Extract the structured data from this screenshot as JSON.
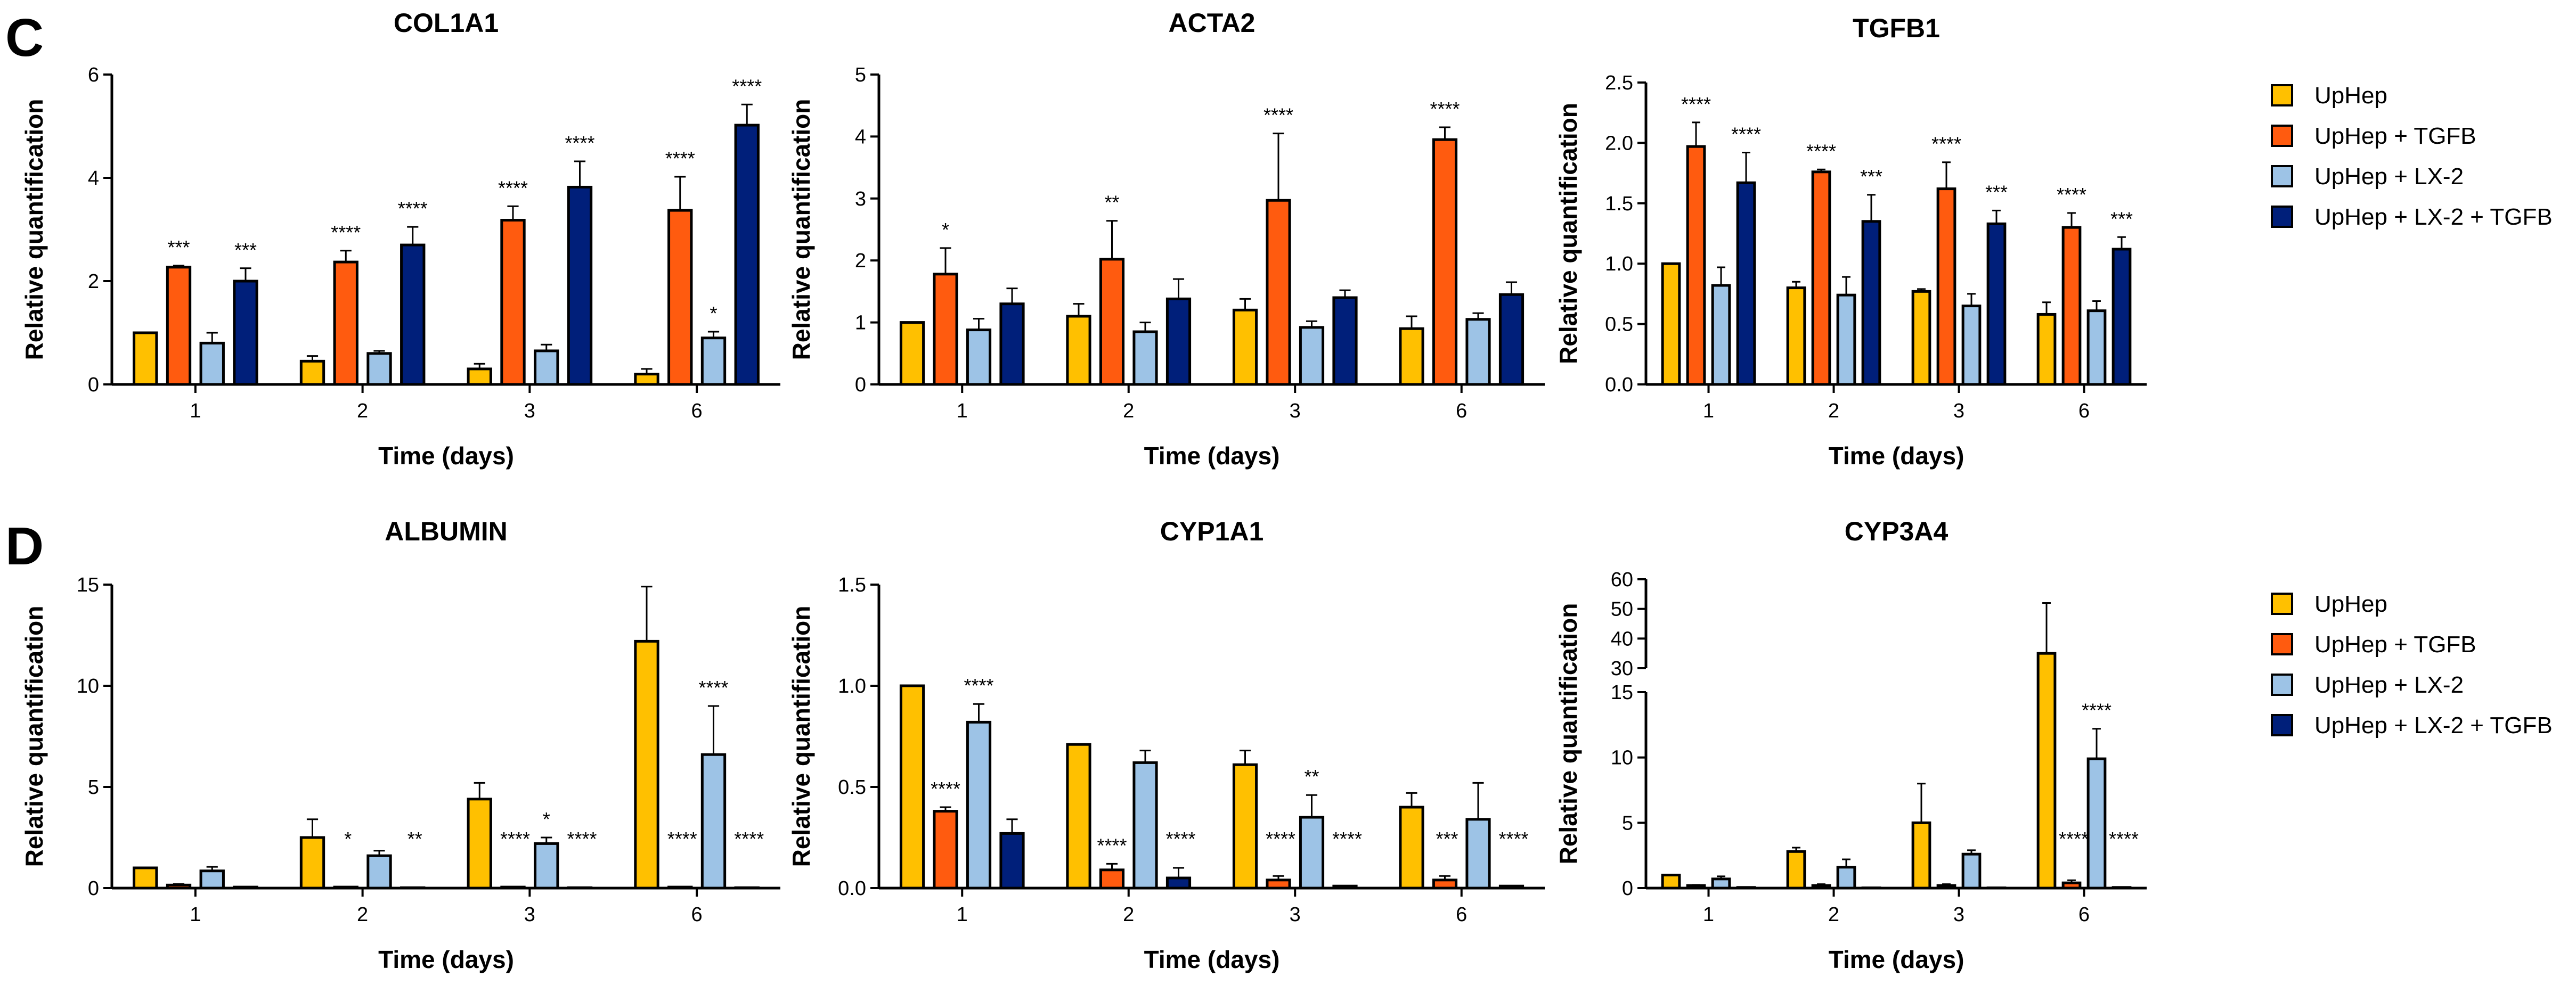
{
  "panels": [
    {
      "letter": "C"
    },
    {
      "letter": "D"
    }
  ],
  "legend": {
    "entries": [
      "UpHep",
      "UpHep + TGFB",
      "UpHep + LX-2",
      "UpHep + LX-2 + TGFB"
    ]
  },
  "colors": {
    "series": [
      "#FFC000",
      "#FF5B0F",
      "#9DC3E6",
      "#001F7A"
    ],
    "axis": "#000000",
    "background": "#FFFFFF"
  },
  "chart_data": [
    {
      "type": "bar",
      "title": "COL1A1",
      "xlabel": "Time (days)",
      "ylabel": "Relative quantification",
      "categories": [
        "1",
        "2",
        "3",
        "6"
      ],
      "ylim": [
        0,
        6
      ],
      "yticks": [
        0,
        2,
        4,
        6
      ],
      "series": [
        {
          "name": "UpHep",
          "values": [
            1.0,
            0.45,
            0.3,
            0.2
          ],
          "errors": [
            0.0,
            0.1,
            0.1,
            0.1
          ],
          "sig": [
            "",
            "",
            "",
            ""
          ]
        },
        {
          "name": "UpHep + TGFB",
          "values": [
            2.27,
            2.37,
            3.18,
            3.37
          ],
          "errors": [
            0.03,
            0.22,
            0.27,
            0.65
          ],
          "sig": [
            "***",
            "****",
            "****",
            "****"
          ]
        },
        {
          "name": "UpHep + LX-2",
          "values": [
            0.8,
            0.6,
            0.65,
            0.9
          ],
          "errors": [
            0.2,
            0.05,
            0.12,
            0.12
          ],
          "sig": [
            "",
            "",
            "",
            "*"
          ]
        },
        {
          "name": "UpHep + LX-2 + TGFB",
          "values": [
            2.0,
            2.7,
            3.82,
            5.02
          ],
          "errors": [
            0.25,
            0.35,
            0.5,
            0.4
          ],
          "sig": [
            "***",
            "****",
            "****",
            "****"
          ]
        }
      ]
    },
    {
      "type": "bar",
      "title": "ACTA2",
      "xlabel": "Time (days)",
      "ylabel": "Relative quantification",
      "categories": [
        "1",
        "2",
        "3",
        "6"
      ],
      "ylim": [
        0,
        5
      ],
      "yticks": [
        0,
        1,
        2,
        3,
        4,
        5
      ],
      "series": [
        {
          "name": "UpHep",
          "values": [
            1.0,
            1.1,
            1.2,
            0.9
          ],
          "errors": [
            0.0,
            0.2,
            0.18,
            0.2
          ],
          "sig": [
            "",
            "",
            "",
            ""
          ]
        },
        {
          "name": "UpHep + TGFB",
          "values": [
            1.78,
            2.02,
            2.97,
            3.95
          ],
          "errors": [
            0.42,
            0.62,
            1.08,
            0.2
          ],
          "sig": [
            "*",
            "**",
            "****",
            "****"
          ]
        },
        {
          "name": "UpHep + LX-2",
          "values": [
            0.88,
            0.85,
            0.92,
            1.05
          ],
          "errors": [
            0.18,
            0.15,
            0.1,
            0.1
          ],
          "sig": [
            "",
            "",
            "",
            ""
          ]
        },
        {
          "name": "UpHep + LX-2 + TGFB",
          "values": [
            1.3,
            1.38,
            1.4,
            1.45
          ],
          "errors": [
            0.25,
            0.32,
            0.12,
            0.2
          ],
          "sig": [
            "",
            "",
            "",
            ""
          ]
        }
      ]
    },
    {
      "type": "bar",
      "title": "TGFB1",
      "xlabel": "Time (days)",
      "ylabel": "Relative quantification",
      "categories": [
        "1",
        "2",
        "3",
        "6"
      ],
      "ylim": [
        0,
        2.5
      ],
      "yticks": [
        0.0,
        0.5,
        1.0,
        1.5,
        2.0,
        2.5
      ],
      "series": [
        {
          "name": "UpHep",
          "values": [
            1.0,
            0.8,
            0.77,
            0.58
          ],
          "errors": [
            0.0,
            0.05,
            0.02,
            0.1
          ],
          "sig": [
            "",
            "",
            "",
            ""
          ]
        },
        {
          "name": "UpHep + TGFB",
          "values": [
            1.97,
            1.76,
            1.62,
            1.3
          ],
          "errors": [
            0.2,
            0.02,
            0.22,
            0.12
          ],
          "sig": [
            "****",
            "****",
            "****",
            "****"
          ]
        },
        {
          "name": "UpHep + LX-2",
          "values": [
            0.82,
            0.74,
            0.65,
            0.61
          ],
          "errors": [
            0.15,
            0.15,
            0.1,
            0.08
          ],
          "sig": [
            "",
            "",
            "",
            ""
          ]
        },
        {
          "name": "UpHep + LX-2 + TGFB",
          "values": [
            1.67,
            1.35,
            1.33,
            1.12
          ],
          "errors": [
            0.25,
            0.22,
            0.11,
            0.1
          ],
          "sig": [
            "****",
            "***",
            "***",
            "***"
          ]
        }
      ]
    },
    {
      "type": "bar",
      "title": "ALBUMIN",
      "xlabel": "Time (days)",
      "ylabel": "Relative quantification",
      "categories": [
        "1",
        "2",
        "3",
        "6"
      ],
      "ylim": [
        0,
        15
      ],
      "yticks": [
        0,
        5,
        10,
        15
      ],
      "series": [
        {
          "name": "UpHep",
          "values": [
            1.0,
            2.5,
            4.4,
            12.2
          ],
          "errors": [
            0.0,
            0.9,
            0.8,
            2.7
          ],
          "sig": [
            "",
            "",
            "",
            ""
          ]
        },
        {
          "name": "UpHep + TGFB",
          "values": [
            0.15,
            0.05,
            0.05,
            0.05
          ],
          "errors": [
            0.05,
            0.0,
            0.0,
            0.0
          ],
          "sig": [
            "",
            "*",
            "****",
            "****"
          ]
        },
        {
          "name": "UpHep + LX-2",
          "values": [
            0.85,
            1.6,
            2.2,
            6.6
          ],
          "errors": [
            0.2,
            0.25,
            0.3,
            2.4
          ],
          "sig": [
            "",
            "",
            "*",
            "****"
          ]
        },
        {
          "name": "UpHep + LX-2 + TGFB",
          "values": [
            0.05,
            0.02,
            0.02,
            0.02
          ],
          "errors": [
            0.0,
            0.0,
            0.0,
            0.0
          ],
          "sig": [
            "",
            "**",
            "****",
            "****"
          ]
        }
      ]
    },
    {
      "type": "bar",
      "title": "CYP1A1",
      "xlabel": "Time (days)",
      "ylabel": "Relative quantification",
      "categories": [
        "1",
        "2",
        "3",
        "6"
      ],
      "ylim": [
        0,
        1.5
      ],
      "yticks": [
        0.0,
        0.5,
        1.0,
        1.5
      ],
      "series": [
        {
          "name": "UpHep",
          "values": [
            1.0,
            0.71,
            0.61,
            0.4
          ],
          "errors": [
            0.0,
            0.0,
            0.07,
            0.07
          ],
          "sig": [
            "",
            "",
            "",
            ""
          ]
        },
        {
          "name": "UpHep + TGFB",
          "values": [
            0.38,
            0.09,
            0.04,
            0.04
          ],
          "errors": [
            0.02,
            0.03,
            0.02,
            0.02
          ],
          "sig": [
            "****",
            "****",
            "****",
            "***"
          ]
        },
        {
          "name": "UpHep + LX-2",
          "values": [
            0.82,
            0.62,
            0.35,
            0.34
          ],
          "errors": [
            0.09,
            0.06,
            0.11,
            0.18
          ],
          "sig": [
            "****",
            "",
            "**",
            ""
          ]
        },
        {
          "name": "UpHep + LX-2 + TGFB",
          "values": [
            0.27,
            0.05,
            0.01,
            0.01
          ],
          "errors": [
            0.07,
            0.05,
            0.0,
            0.0
          ],
          "sig": [
            "",
            "****",
            "****",
            "****"
          ]
        }
      ]
    },
    {
      "type": "bar",
      "title": "CYP3A4",
      "xlabel": "Time (days)",
      "ylabel": "Relative quantification",
      "categories": [
        "1",
        "2",
        "3",
        "6"
      ],
      "ylim": [
        0,
        60
      ],
      "broken_axis": [
        15,
        30
      ],
      "yticks": [
        0,
        5,
        10,
        15,
        30,
        40,
        50,
        60
      ],
      "series": [
        {
          "name": "UpHep",
          "values": [
            1.0,
            2.8,
            5.0,
            35.0
          ],
          "errors": [
            0.0,
            0.3,
            3.0,
            17.0
          ],
          "sig": [
            "",
            "",
            "",
            ""
          ]
        },
        {
          "name": "UpHep + TGFB",
          "values": [
            0.2,
            0.2,
            0.2,
            0.4
          ],
          "errors": [
            0.05,
            0.1,
            0.1,
            0.2
          ],
          "sig": [
            "",
            "",
            "",
            "****"
          ]
        },
        {
          "name": "UpHep + LX-2",
          "values": [
            0.7,
            1.6,
            2.6,
            9.9
          ],
          "errors": [
            0.2,
            0.6,
            0.3,
            2.3
          ],
          "sig": [
            "",
            "",
            "",
            "****"
          ]
        },
        {
          "name": "UpHep + LX-2 + TGFB",
          "values": [
            0.05,
            0.02,
            0.02,
            0.05
          ],
          "errors": [
            0.0,
            0.0,
            0.0,
            0.0
          ],
          "sig": [
            "",
            "",
            "",
            "****"
          ]
        }
      ]
    }
  ]
}
